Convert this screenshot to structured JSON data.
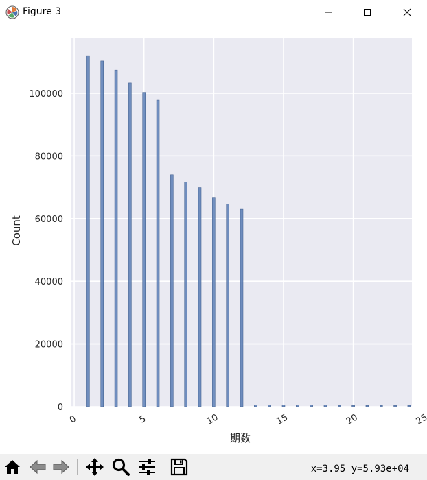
{
  "window": {
    "title": "Figure 3",
    "icons": {
      "app": "matplotlib-logo-icon",
      "minimize": "minimize-icon",
      "maximize": "maximize-icon",
      "close": "close-icon"
    }
  },
  "toolbar": {
    "items": [
      {
        "name": "home-button",
        "icon": "home-icon"
      },
      {
        "name": "back-button",
        "icon": "back-arrow-icon"
      },
      {
        "name": "forward-button",
        "icon": "forward-arrow-icon"
      },
      {
        "name": "pan-button",
        "icon": "move-icon"
      },
      {
        "name": "zoom-button",
        "icon": "magnifier-icon"
      },
      {
        "name": "configure-subplots-button",
        "icon": "sliders-icon"
      },
      {
        "name": "save-button",
        "icon": "floppy-disk-icon"
      }
    ],
    "coords": "x=3.95  y=5.93e+04"
  },
  "chart_data": {
    "type": "bar",
    "style": "seaborn-darkgrid",
    "background": "#eaeaf2",
    "bar_color": "#4c72b0",
    "title": "",
    "xlabel": "期数",
    "ylabel": "Count",
    "xlim": [
      -0.2,
      24.2
    ],
    "ylim": [
      0,
      117500
    ],
    "xticks": [
      0,
      5,
      10,
      15,
      20,
      25
    ],
    "xtick_labels": [
      "0",
      "5",
      "10",
      "15",
      "20",
      "25"
    ],
    "yticks": [
      0,
      20000,
      40000,
      60000,
      80000,
      100000
    ],
    "ytick_labels": [
      "0",
      "20000",
      "40000",
      "60000",
      "80000",
      "100000"
    ],
    "grid": true,
    "x": [
      1,
      2,
      3,
      4,
      5,
      6,
      7,
      8,
      9,
      10,
      11,
      12,
      13,
      14,
      15,
      16,
      17,
      18,
      19,
      20,
      21,
      22,
      23,
      24
    ],
    "values": [
      112000,
      110300,
      107400,
      103300,
      100300,
      97800,
      74000,
      71700,
      69900,
      66600,
      64700,
      63000,
      600,
      600,
      600,
      600,
      600,
      500,
      400,
      400,
      400,
      400,
      400,
      400
    ]
  }
}
